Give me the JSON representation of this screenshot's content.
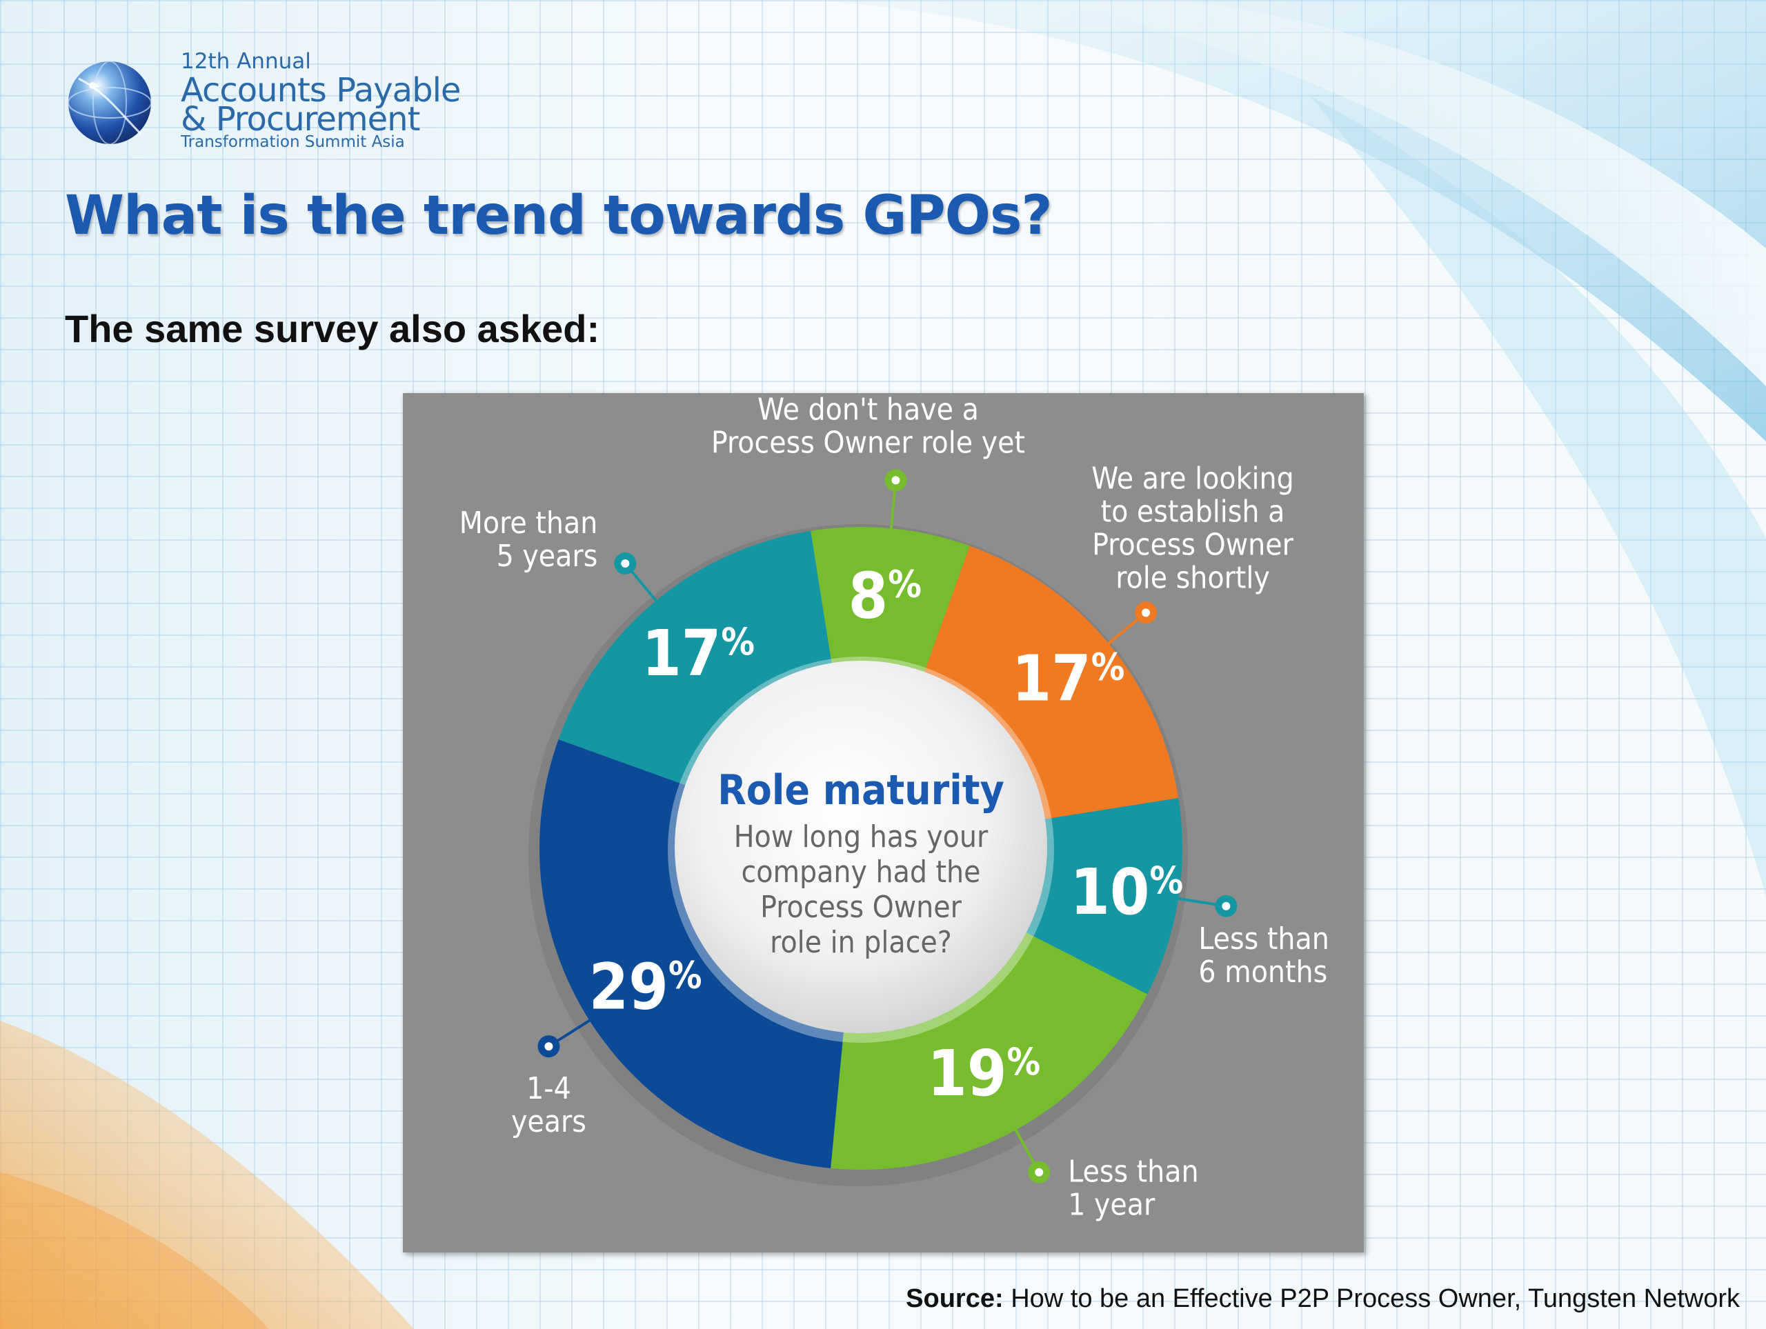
{
  "header": {
    "logo": {
      "line1": "12th Annual",
      "line2": "Accounts Payable",
      "line3": "& Procurement",
      "line4": "Transformation Summit Asia"
    },
    "title": "What is the trend towards GPOs?",
    "subtitle": "The same survey also asked:"
  },
  "source": {
    "label": "Source:",
    "text": " How to be an Effective P2P Process Owner, Tungsten Network"
  },
  "colors": {
    "title": "#1a5ab0",
    "panel": "#8d8d8d",
    "green": "#76bd2e",
    "orange": "#ef7a22",
    "teal": "#1497a3",
    "navy": "#0a4a96"
  },
  "chart_data": {
    "type": "pie",
    "title": "Role maturity",
    "center_question": [
      "How long has your",
      "company had the",
      "Process Owner",
      "role in place?"
    ],
    "unit": "%",
    "slices": [
      {
        "label_lines": [
          "We don't have a",
          "Process Owner role yet"
        ],
        "value": 8,
        "color": "#76bd2e"
      },
      {
        "label_lines": [
          "We are looking",
          "to establish a",
          "Process Owner",
          "role shortly"
        ],
        "value": 17,
        "color": "#ef7a22"
      },
      {
        "label_lines": [
          "Less than",
          "6 months"
        ],
        "value": 10,
        "color": "#1497a3"
      },
      {
        "label_lines": [
          "Less than",
          "1 year"
        ],
        "value": 19,
        "color": "#76bd2e"
      },
      {
        "label_lines": [
          "1-4",
          "years"
        ],
        "value": 29,
        "color": "#0a4a96"
      },
      {
        "label_lines": [
          "More than",
          "5 years"
        ],
        "value": 17,
        "color": "#1497a3"
      }
    ]
  }
}
